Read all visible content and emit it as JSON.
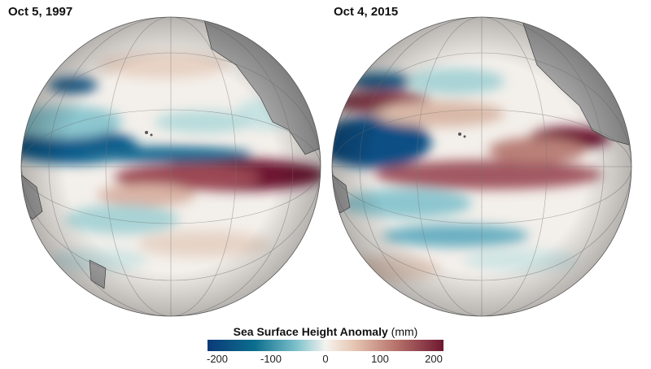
{
  "panels": [
    {
      "title": "Oct 5, 1997",
      "year": 1997
    },
    {
      "title": "Oct 4, 2015",
      "year": 2015
    }
  ],
  "legend": {
    "title": "Sea Surface Height Anomaly",
    "unit": "(mm)",
    "ticks": [
      "-200",
      "-100",
      "0",
      "100",
      "200"
    ],
    "colors": {
      "negative": "#0b3a78",
      "neutral": "#f5f3ef",
      "positive": "#6e1830",
      "land": "#a9a9a9"
    }
  }
}
